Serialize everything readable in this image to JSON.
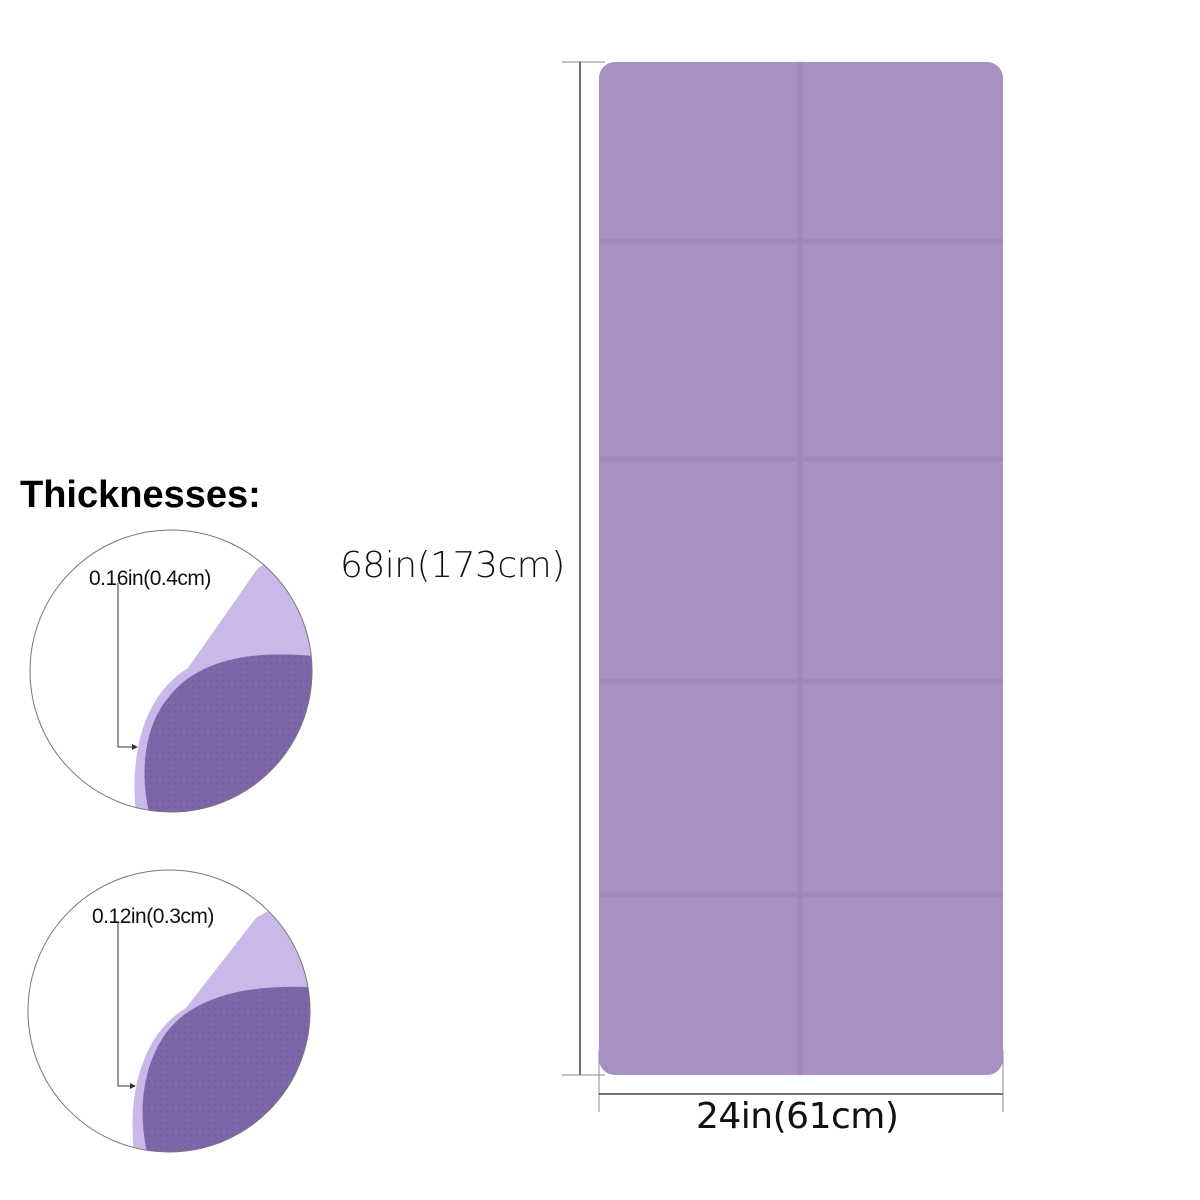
{
  "title": "Thicknesses:",
  "length_label": "68in(173cm)",
  "width_label": "24in(61cm)",
  "thickness_options": [
    {
      "label": "0.16in(0.4cm)"
    },
    {
      "label": "0.12in(0.3cm)"
    }
  ],
  "colors": {
    "mat": "#a990c3",
    "mat_fold_line": "#a287bb",
    "mat_top_light": "#c7b6e6",
    "mat_underside": "#7d64a6"
  }
}
